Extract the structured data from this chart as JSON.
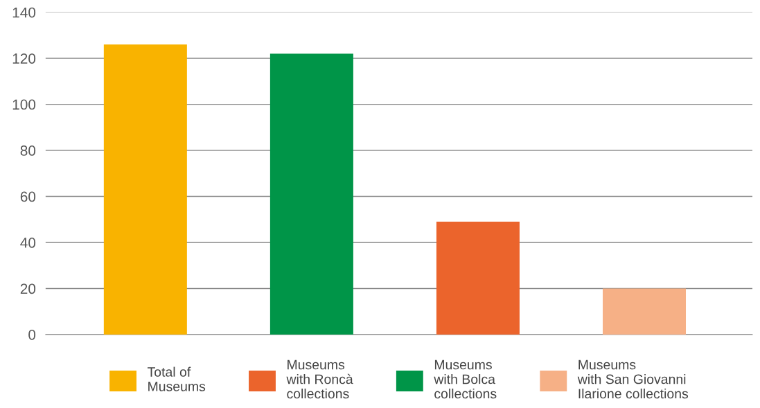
{
  "chart_data": {
    "type": "bar",
    "categories": [
      null,
      null,
      null,
      null
    ],
    "series": [
      {
        "name": "Total of\nMuseums",
        "color": "#f9b300",
        "values": [
          126,
          null,
          null,
          null
        ]
      },
      {
        "name": "Museums\nwith Roncà\ncollections",
        "color": "#eb642c",
        "values": [
          null,
          null,
          49,
          null
        ]
      },
      {
        "name": "Museums\nwith Bolca\ncollections",
        "color": "#009548",
        "values": [
          null,
          122,
          null,
          null
        ]
      },
      {
        "name": "Museums\nwith San Giovanni\nIlarione collections",
        "color": "#f6b086",
        "values": [
          null,
          null,
          null,
          20
        ]
      }
    ],
    "ylim": [
      0,
      140
    ],
    "yticks": [
      0,
      20,
      40,
      60,
      80,
      100,
      120,
      140
    ],
    "grid": "y",
    "legend": "bottom"
  }
}
